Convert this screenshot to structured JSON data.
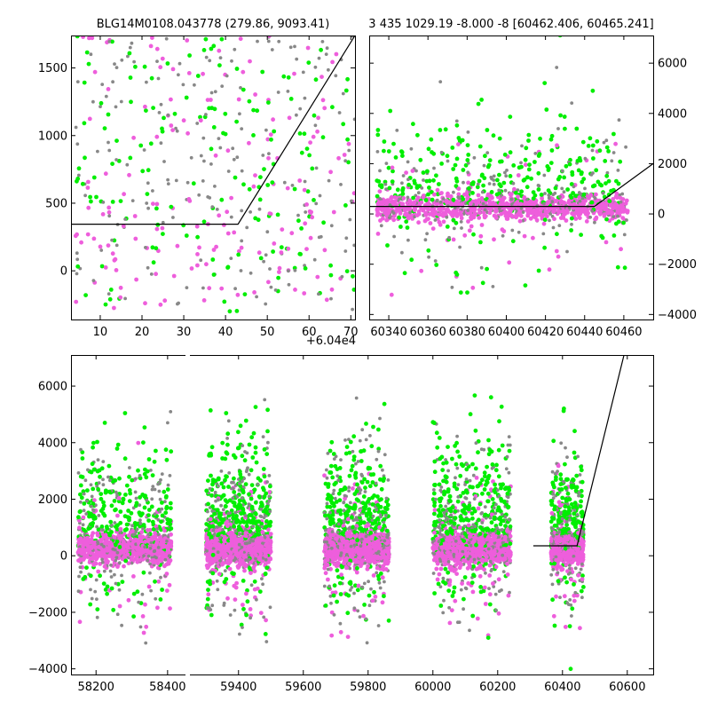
{
  "chart_data": [
    {
      "type": "scatter",
      "title": "BLG14M0108.043778 (279.86, 9093.41)",
      "xlim": [
        3,
        71
      ],
      "ylim": [
        -360,
        1740
      ],
      "x_offset_label": "+6.04e4",
      "x_ticks": [
        10,
        20,
        30,
        40,
        50,
        60,
        70
      ],
      "y_ticks": [
        0,
        500,
        1000,
        1500
      ],
      "y_axis_side": "left",
      "model_line": [
        [
          3,
          345
        ],
        [
          43,
          345
        ],
        [
          71,
          1740
        ]
      ],
      "point_clusters": [
        {
          "x": [
            4,
            71
          ],
          "y": [
            -300,
            1740
          ],
          "n": 520,
          "mode": "scatter"
        }
      ]
    },
    {
      "type": "scatter",
      "title": "3 435 1029.19 -8.000 -8 [60462.406, 60465.241]",
      "xlim": [
        60330,
        60475
      ],
      "ylim": [
        -4200,
        7100
      ],
      "x_ticks": [
        60340,
        60360,
        60380,
        60400,
        60420,
        60440,
        60460
      ],
      "y_ticks": [
        -4000,
        -2000,
        0,
        2000,
        4000,
        6000
      ],
      "y_axis_side": "right",
      "model_line": [
        [
          60330,
          300
        ],
        [
          60445,
          300
        ],
        [
          60475,
          2000
        ]
      ],
      "point_clusters": [
        {
          "x": [
            60334,
            60462
          ],
          "y": [
            -4200,
            7100
          ],
          "n": 1400,
          "mode": "band"
        }
      ]
    },
    {
      "type": "scatter",
      "title": "",
      "broken_x_axis": true,
      "segments": [
        {
          "xlim": [
            58130,
            58450
          ],
          "x_ticks": [
            58200,
            58400
          ]
        },
        {
          "xlim": [
            59250,
            60680
          ],
          "x_ticks": [
            59400,
            59600,
            59800,
            60000,
            60200,
            60400,
            60600
          ]
        }
      ],
      "ylim": [
        -4200,
        7100
      ],
      "y_ticks": [
        -4000,
        -2000,
        0,
        2000,
        4000,
        6000
      ],
      "y_axis_side": "left",
      "model_line": [
        [
          60310,
          350
        ],
        [
          60445,
          350
        ],
        [
          60590,
          7100
        ]
      ],
      "point_clusters": [
        {
          "x": [
            58150,
            58410
          ],
          "y": [
            -4200,
            7100
          ],
          "n": 1300,
          "mode": "band"
        },
        {
          "x": [
            59300,
            59500
          ],
          "y": [
            -4200,
            7100
          ],
          "n": 1800,
          "mode": "band"
        },
        {
          "x": [
            59665,
            59865
          ],
          "y": [
            -4200,
            7100
          ],
          "n": 1600,
          "mode": "band"
        },
        {
          "x": [
            60000,
            60240
          ],
          "y": [
            -4200,
            7100
          ],
          "n": 1700,
          "mode": "band"
        },
        {
          "x": [
            60365,
            60465
          ],
          "y": [
            -4200,
            7100
          ],
          "n": 1000,
          "mode": "band"
        }
      ]
    }
  ],
  "series_colors": {
    "magenta": "#ee5edc",
    "green": "#00ee00",
    "gray": "#888888"
  }
}
